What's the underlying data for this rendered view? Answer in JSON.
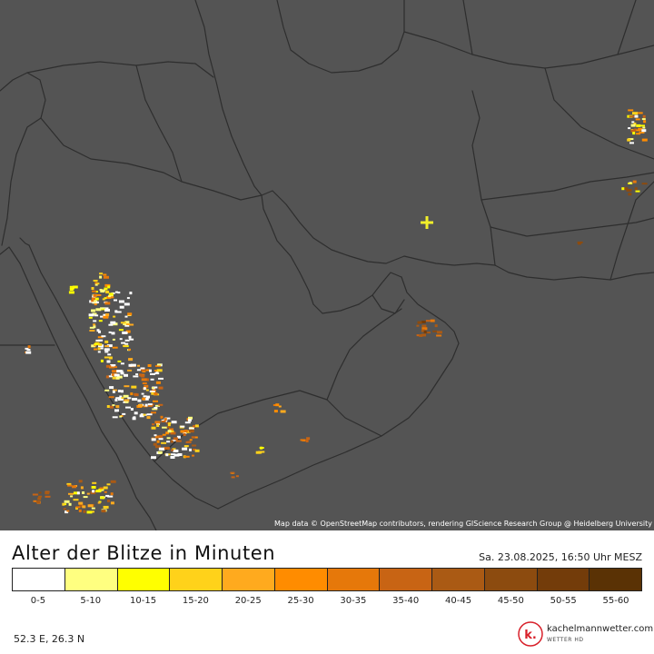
{
  "map": {
    "attribution": "Map data © OpenStreetMap contributors, rendering GIScience Research Group @ Heidelberg University",
    "background_color": "#545454",
    "border_color": "#2f2f2f",
    "marker_color": "#f2ef2a",
    "strikes": [
      {
        "lon": 39.8,
        "lat": 22.9,
        "age_bin": 4
      }
    ]
  },
  "legend": {
    "title": "Alter der Blitze in Minuten",
    "timestamp": "Sa. 23.08.2025, 16:50 Uhr MESZ",
    "bins": [
      {
        "label": "0-5",
        "color": "#ffffff"
      },
      {
        "label": "5-10",
        "color": "#ffff80"
      },
      {
        "label": "10-15",
        "color": "#ffff00"
      },
      {
        "label": "15-20",
        "color": "#ffd21a"
      },
      {
        "label": "20-25",
        "color": "#ffaa1e"
      },
      {
        "label": "25-30",
        "color": "#ff8c00"
      },
      {
        "label": "30-35",
        "color": "#e6780a"
      },
      {
        "label": "35-40",
        "color": "#c86414"
      },
      {
        "label": "40-45",
        "color": "#aa5a14"
      },
      {
        "label": "45-50",
        "color": "#8c4b0f"
      },
      {
        "label": "50-55",
        "color": "#733c0a"
      },
      {
        "label": "55-60",
        "color": "#5a3205"
      }
    ]
  },
  "location": {
    "coords": "52.3 E, 26.3 N"
  },
  "brand": {
    "name": "kachelmannwetter.com",
    "sub": "WETTER HD",
    "logo_letter": "k.",
    "logo_color": "#d8202a"
  }
}
